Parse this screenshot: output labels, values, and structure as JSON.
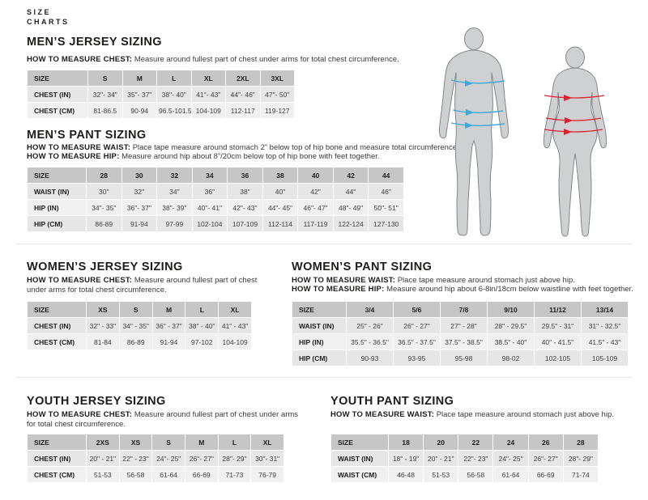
{
  "colors": {
    "male_arrow": "#3fa9dc",
    "female_arrow": "#e11f2f",
    "silhouette_fill": "#ced0d2",
    "silhouette_stroke": "#83868a",
    "table_header_bg": "#c6c6c6",
    "row_bg_odd": "#e6e6e6",
    "row_bg_even": "#f0f0f0"
  },
  "page_title": "SIZE\nCHARTS",
  "sections": {
    "mens_jersey": {
      "heading": "MEN’S JERSEY SIZING",
      "howto": [
        {
          "label": "HOW TO MEASURE CHEST:",
          "text": "Measure around fullest part of chest under arms for total chest circumference."
        }
      ],
      "table": {
        "header": [
          "SIZE",
          "S",
          "M",
          "L",
          "XL",
          "2XL",
          "3XL"
        ],
        "rows": [
          {
            "label": "CHEST (IN)",
            "values": [
              "32\"- 34\"",
              "35\"- 37\"",
              "38\"- 40\"",
              "41\"- 43\"",
              "44\"- 46\"",
              "47\"- 50\""
            ]
          },
          {
            "label": "CHEST (CM)",
            "values": [
              "81-86.5",
              "90-94",
              "96.5-101.5",
              "104-109",
              "112-117",
              "119-127"
            ]
          }
        ]
      }
    },
    "mens_pant": {
      "heading": "MEN’S PANT SIZING",
      "howto": [
        {
          "label": "HOW TO MEASURE WAIST:",
          "text": "Place tape measure around stomach 2” below top of hip bone and measure total circumference."
        },
        {
          "label": "HOW TO MEASURE HIP:",
          "text": "Measure around hip about 8”/20cm below top of hip bone with feet together."
        }
      ],
      "table": {
        "header": [
          "SIZE",
          "28",
          "30",
          "32",
          "34",
          "36",
          "38",
          "40",
          "42",
          "44"
        ],
        "rows": [
          {
            "label": "WAIST (IN)",
            "values": [
              "30\"",
              "32\"",
              "34\"",
              "36\"",
              "38\"",
              "40\"",
              "42\"",
              "44\"",
              "46\""
            ]
          },
          {
            "label": "HIP (IN)",
            "values": [
              "34\"- 35\"",
              "36\"- 37\"",
              "38\"- 39\"",
              "40\"- 41\"",
              "42\"- 43\"",
              "44\"- 45\"",
              "46\"- 47\"",
              "48\"- 49\"",
              "50\"- 51\""
            ]
          },
          {
            "label": "HIP (CM)",
            "values": [
              "86-89",
              "91-94",
              "97-99",
              "102-104",
              "107-109",
              "112-114",
              "117-119",
              "122-124",
              "127-130"
            ]
          }
        ]
      }
    },
    "womens_jersey": {
      "heading": "WOMEN’S JERSEY SIZING",
      "howto": [
        {
          "label": "HOW TO MEASURE CHEST:",
          "text": "Measure around fullest part of chest under arms for total chest circumference."
        }
      ],
      "table": {
        "header": [
          "SIZE",
          "XS",
          "S",
          "M",
          "L",
          "XL"
        ],
        "rows": [
          {
            "label": "CHEST (IN)",
            "values": [
              "32\" - 33\"",
              "34\" - 35\"",
              "36\" - 37\"",
              "38\" - 40\"",
              "41\" - 43\""
            ]
          },
          {
            "label": "CHEST (CM)",
            "values": [
              "81-84",
              "86-89",
              "91-94",
              "97-102",
              "104-109"
            ]
          }
        ]
      }
    },
    "womens_pant": {
      "heading": "WOMEN’S PANT SIZING",
      "howto": [
        {
          "label": "HOW TO MEASURE WAIST:",
          "text": "Place tape measure around stomach just above hip."
        },
        {
          "label": "HOW TO MEASURE HIP:",
          "text": "Measure around hip about 6-8in/18cm below waistline with feet together."
        }
      ],
      "table": {
        "header": [
          "SIZE",
          "3/4",
          "5/6",
          "7/8",
          "9/10",
          "11/12",
          "13/14"
        ],
        "rows": [
          {
            "label": "WAIST (IN)",
            "values": [
              "25\" - 26\"",
              "26\" - 27\"",
              "27\" - 28\"",
              "28\" - 29.5\"",
              "29.5\" - 31\"",
              "31\" - 32.5\""
            ]
          },
          {
            "label": "HIP (IN)",
            "values": [
              "35.5\" - 36.5\"",
              "36.5\" - 37.5\"",
              "37.5\" - 38.5\"",
              "38.5\" - 40\"",
              "40\" - 41.5\"",
              "41.5\" - 43\""
            ]
          },
          {
            "label": "HIP (CM)",
            "values": [
              "90-93",
              "93-95",
              "95-98",
              "98-02",
              "102-105",
              "105-109"
            ]
          }
        ]
      }
    },
    "youth_jersey": {
      "heading": "YOUTH JERSEY SIZING",
      "howto": [
        {
          "label": "HOW TO MEASURE CHEST:",
          "text": "Measure around fullest part of chest under arms for total chest circumference."
        }
      ],
      "table": {
        "header": [
          "SIZE",
          "2XS",
          "XS",
          "S",
          "M",
          "L",
          "XL"
        ],
        "rows": [
          {
            "label": "CHEST (IN)",
            "values": [
              "20\" - 21\"",
              "22\" - 23\"",
              "24\"- 25\"",
              "26\"- 27\"",
              "28\"- 29\"",
              "30\"- 31\""
            ]
          },
          {
            "label": "CHEST (CM)",
            "values": [
              "51-53",
              "56-58",
              "61-64",
              "66-69",
              "71-73",
              "76-79"
            ]
          }
        ]
      }
    },
    "youth_pant": {
      "heading": "YOUTH PANT SIZING",
      "howto": [
        {
          "label": "HOW TO MEASURE WAIST:",
          "text": "Place tape measure around stomach just above hip."
        }
      ],
      "table": {
        "header": [
          "SIZE",
          "18",
          "20",
          "22",
          "24",
          "26",
          "28"
        ],
        "rows": [
          {
            "label": "WAIST (IN)",
            "values": [
              "18\" - 19\"",
              "20\" - 21\"",
              "22\"- 23\"",
              "24\"- 25\"",
              "26\"- 27\"",
              "28\"- 29\""
            ]
          },
          {
            "label": "WAIST (CM)",
            "values": [
              "46-48",
              "51-53",
              "56-58",
              "61-64",
              "66-69",
              "71-74"
            ]
          }
        ]
      }
    }
  }
}
